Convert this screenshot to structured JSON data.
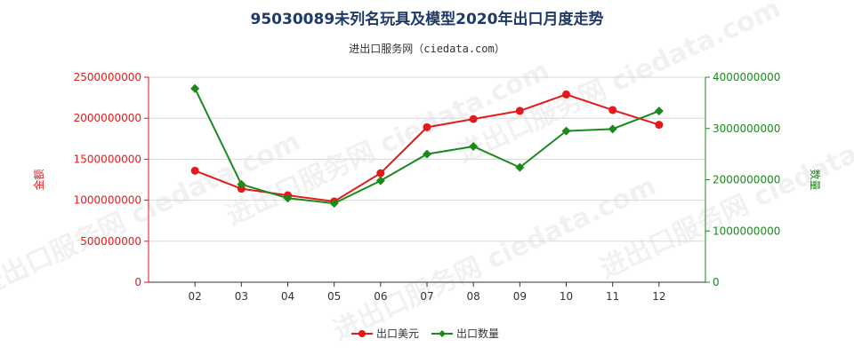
{
  "chart_data": {
    "type": "line",
    "title": "95030089未列名玩具及模型2020年出口月度走势",
    "subtitle": "进出口服务网（ciedata.com）",
    "watermark": "进出口服务网 ciedata.com",
    "categories": [
      "02",
      "03",
      "04",
      "05",
      "06",
      "07",
      "08",
      "09",
      "10",
      "11",
      "12"
    ],
    "ylabel_left": "金额",
    "ylabel_right": "数量",
    "ylim_left": [
      0,
      2500000000
    ],
    "ylim_right": [
      0,
      4000000000
    ],
    "yticks_left": [
      "0",
      "500000000",
      "1000000000",
      "1500000000",
      "2000000000",
      "2500000000"
    ],
    "yticks_right": [
      "0",
      "1000000000",
      "2000000000",
      "3000000000",
      "4000000000"
    ],
    "grid": true,
    "legend_position": "bottom",
    "series": [
      {
        "name": "出口美元",
        "axis": "left",
        "color": "#e31a1c",
        "marker": "circle",
        "values": [
          1360000000,
          1140000000,
          1060000000,
          985000000,
          1330000000,
          1890000000,
          1990000000,
          2090000000,
          2290000000,
          2100000000,
          1920000000
        ]
      },
      {
        "name": "出口数量",
        "axis": "right",
        "color": "#1a8a1a",
        "marker": "diamond",
        "values": [
          3780000000,
          1910000000,
          1640000000,
          1540000000,
          1980000000,
          2500000000,
          2650000000,
          2240000000,
          2950000000,
          2990000000,
          3340000000
        ]
      }
    ]
  }
}
